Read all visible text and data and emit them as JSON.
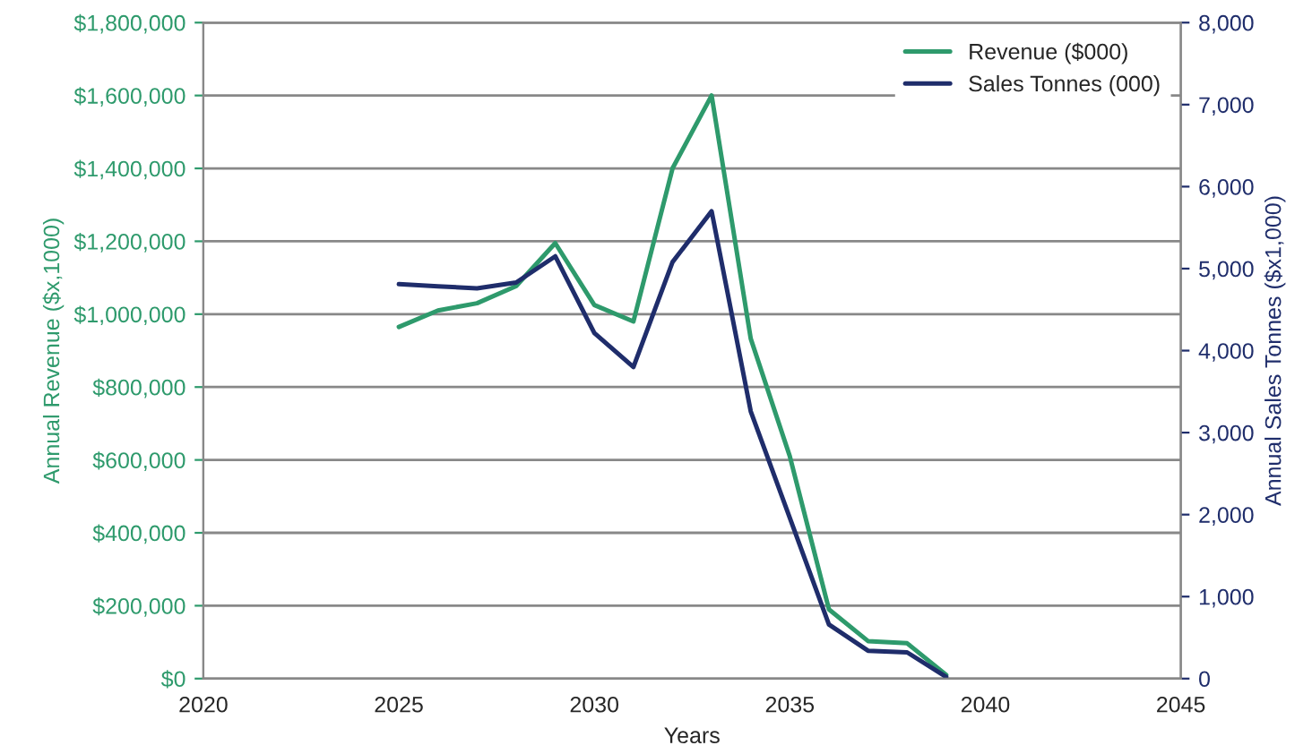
{
  "chart_data": {
    "type": "line",
    "xlabel": "Years",
    "ylabel": "Annual Revenue ($x,1000)",
    "y2label": "Annual Sales Tonnes ($x1,000)",
    "x": [
      2025,
      2026,
      2027,
      2028,
      2029,
      2030,
      2031,
      2032,
      2033,
      2034,
      2035,
      2036,
      2037,
      2038,
      2039
    ],
    "series": [
      {
        "name": "Revenue ($000)",
        "color": "#2e9a6c",
        "values": [
          965000,
          1010000,
          1030000,
          1077000,
          1195000,
          1025000,
          980000,
          1400000,
          1600000,
          933000,
          610000,
          190000,
          103000,
          97000,
          10000
        ]
      },
      {
        "name": "Sales Tonnes (000)",
        "color": "#1f2d6b",
        "axis": "y2",
        "values": [
          4810,
          4785,
          4760,
          4830,
          5150,
          4215,
          3800,
          5080,
          5700,
          3260,
          1960,
          660,
          340,
          320,
          20
        ]
      }
    ],
    "xlim": [
      2020,
      2045
    ],
    "xticks": [
      2020,
      2025,
      2030,
      2035,
      2040,
      2045
    ],
    "ylim": [
      0,
      1800000
    ],
    "yticks": [
      {
        "value": 0,
        "label": "$0"
      },
      {
        "value": 200000,
        "label": "$200,000"
      },
      {
        "value": 400000,
        "label": "$400,000"
      },
      {
        "value": 600000,
        "label": "$600,000"
      },
      {
        "value": 800000,
        "label": "$800,000"
      },
      {
        "value": 1000000,
        "label": "$1,000,000"
      },
      {
        "value": 1200000,
        "label": "$1,200,000"
      },
      {
        "value": 1400000,
        "label": "$1,400,000"
      },
      {
        "value": 1600000,
        "label": "$1,600,000"
      },
      {
        "value": 1800000,
        "label": "$1,800,000"
      }
    ],
    "y2lim": [
      0,
      8000
    ],
    "y2ticks": [
      {
        "value": 0,
        "label": "0"
      },
      {
        "value": 1000,
        "label": "1,000"
      },
      {
        "value": 2000,
        "label": "2,000"
      },
      {
        "value": 3000,
        "label": "3,000"
      },
      {
        "value": 4000,
        "label": "4,000"
      },
      {
        "value": 5000,
        "label": "5,000"
      },
      {
        "value": 6000,
        "label": "6,000"
      },
      {
        "value": 7000,
        "label": "7,000"
      },
      {
        "value": 8000,
        "label": "8,000"
      }
    ],
    "grid": "y",
    "legend": "top right",
    "marker": "none",
    "line_style": "solid"
  }
}
